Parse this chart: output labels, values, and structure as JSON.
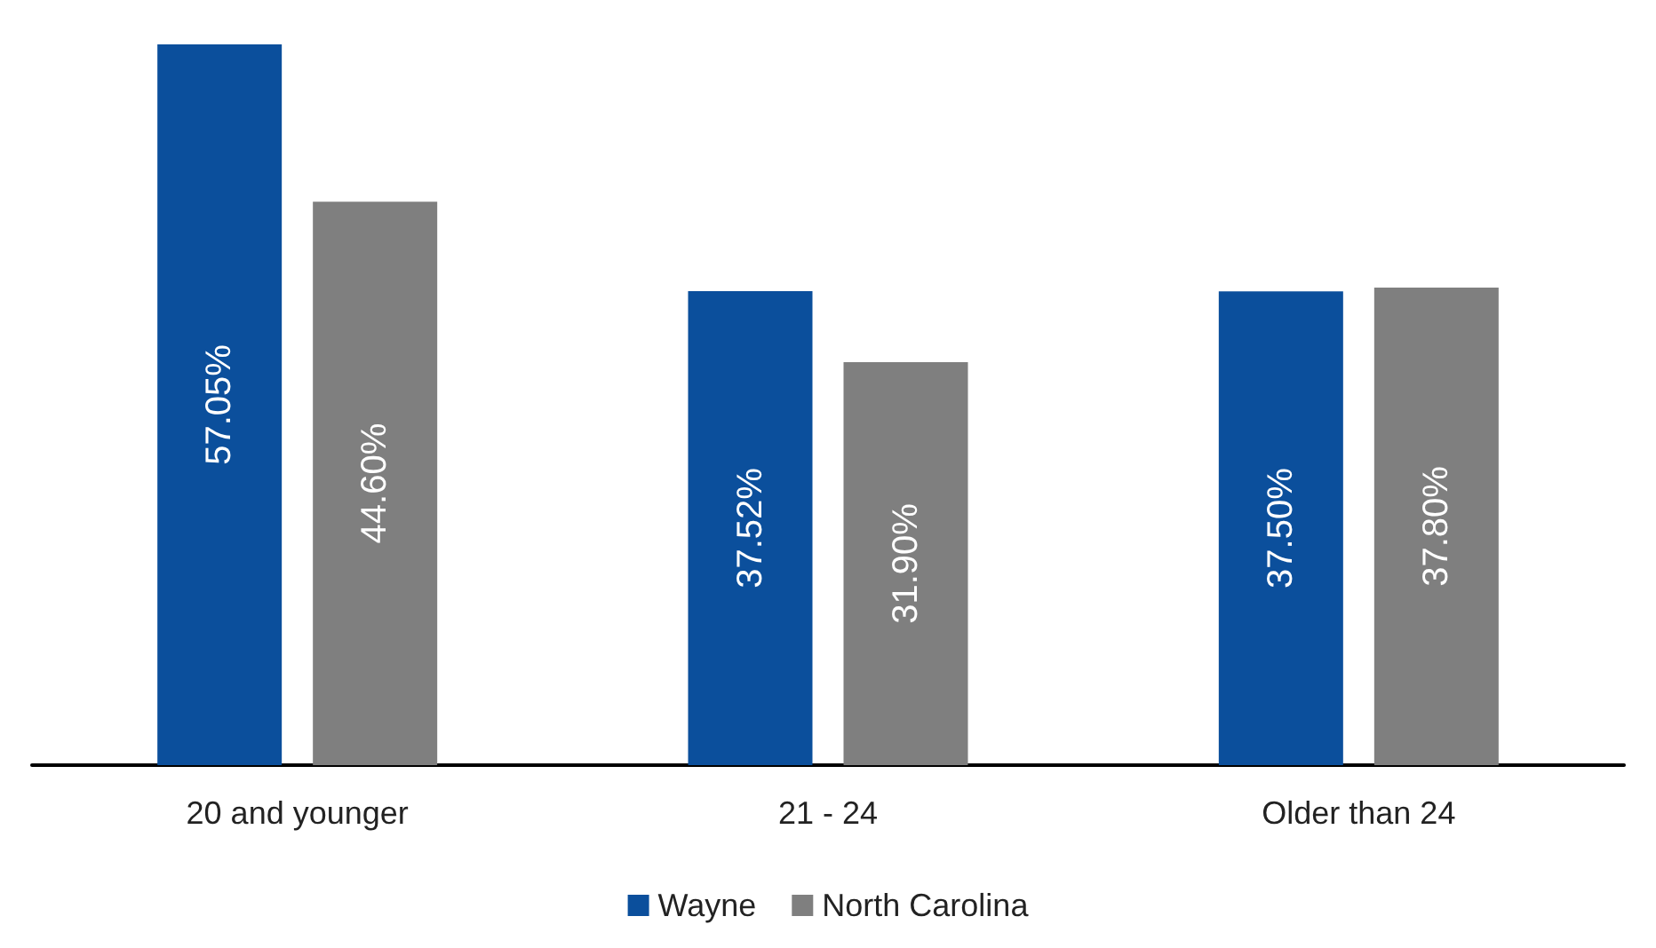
{
  "chart_data": {
    "type": "bar",
    "categories": [
      "20 and younger",
      "21 - 24",
      "Older than 24"
    ],
    "series": [
      {
        "name": "Wayne",
        "color": "#0b4f9c",
        "values": [
          57.05,
          37.52,
          37.5
        ],
        "value_labels": [
          "57.05%",
          "37.52%",
          "37.50%"
        ]
      },
      {
        "name": "North Carolina",
        "color": "#7f7f7f",
        "values": [
          44.6,
          31.9,
          37.8
        ],
        "value_labels": [
          "44.60%",
          "31.90%",
          "37.80%"
        ]
      }
    ],
    "legend": "bottom"
  }
}
